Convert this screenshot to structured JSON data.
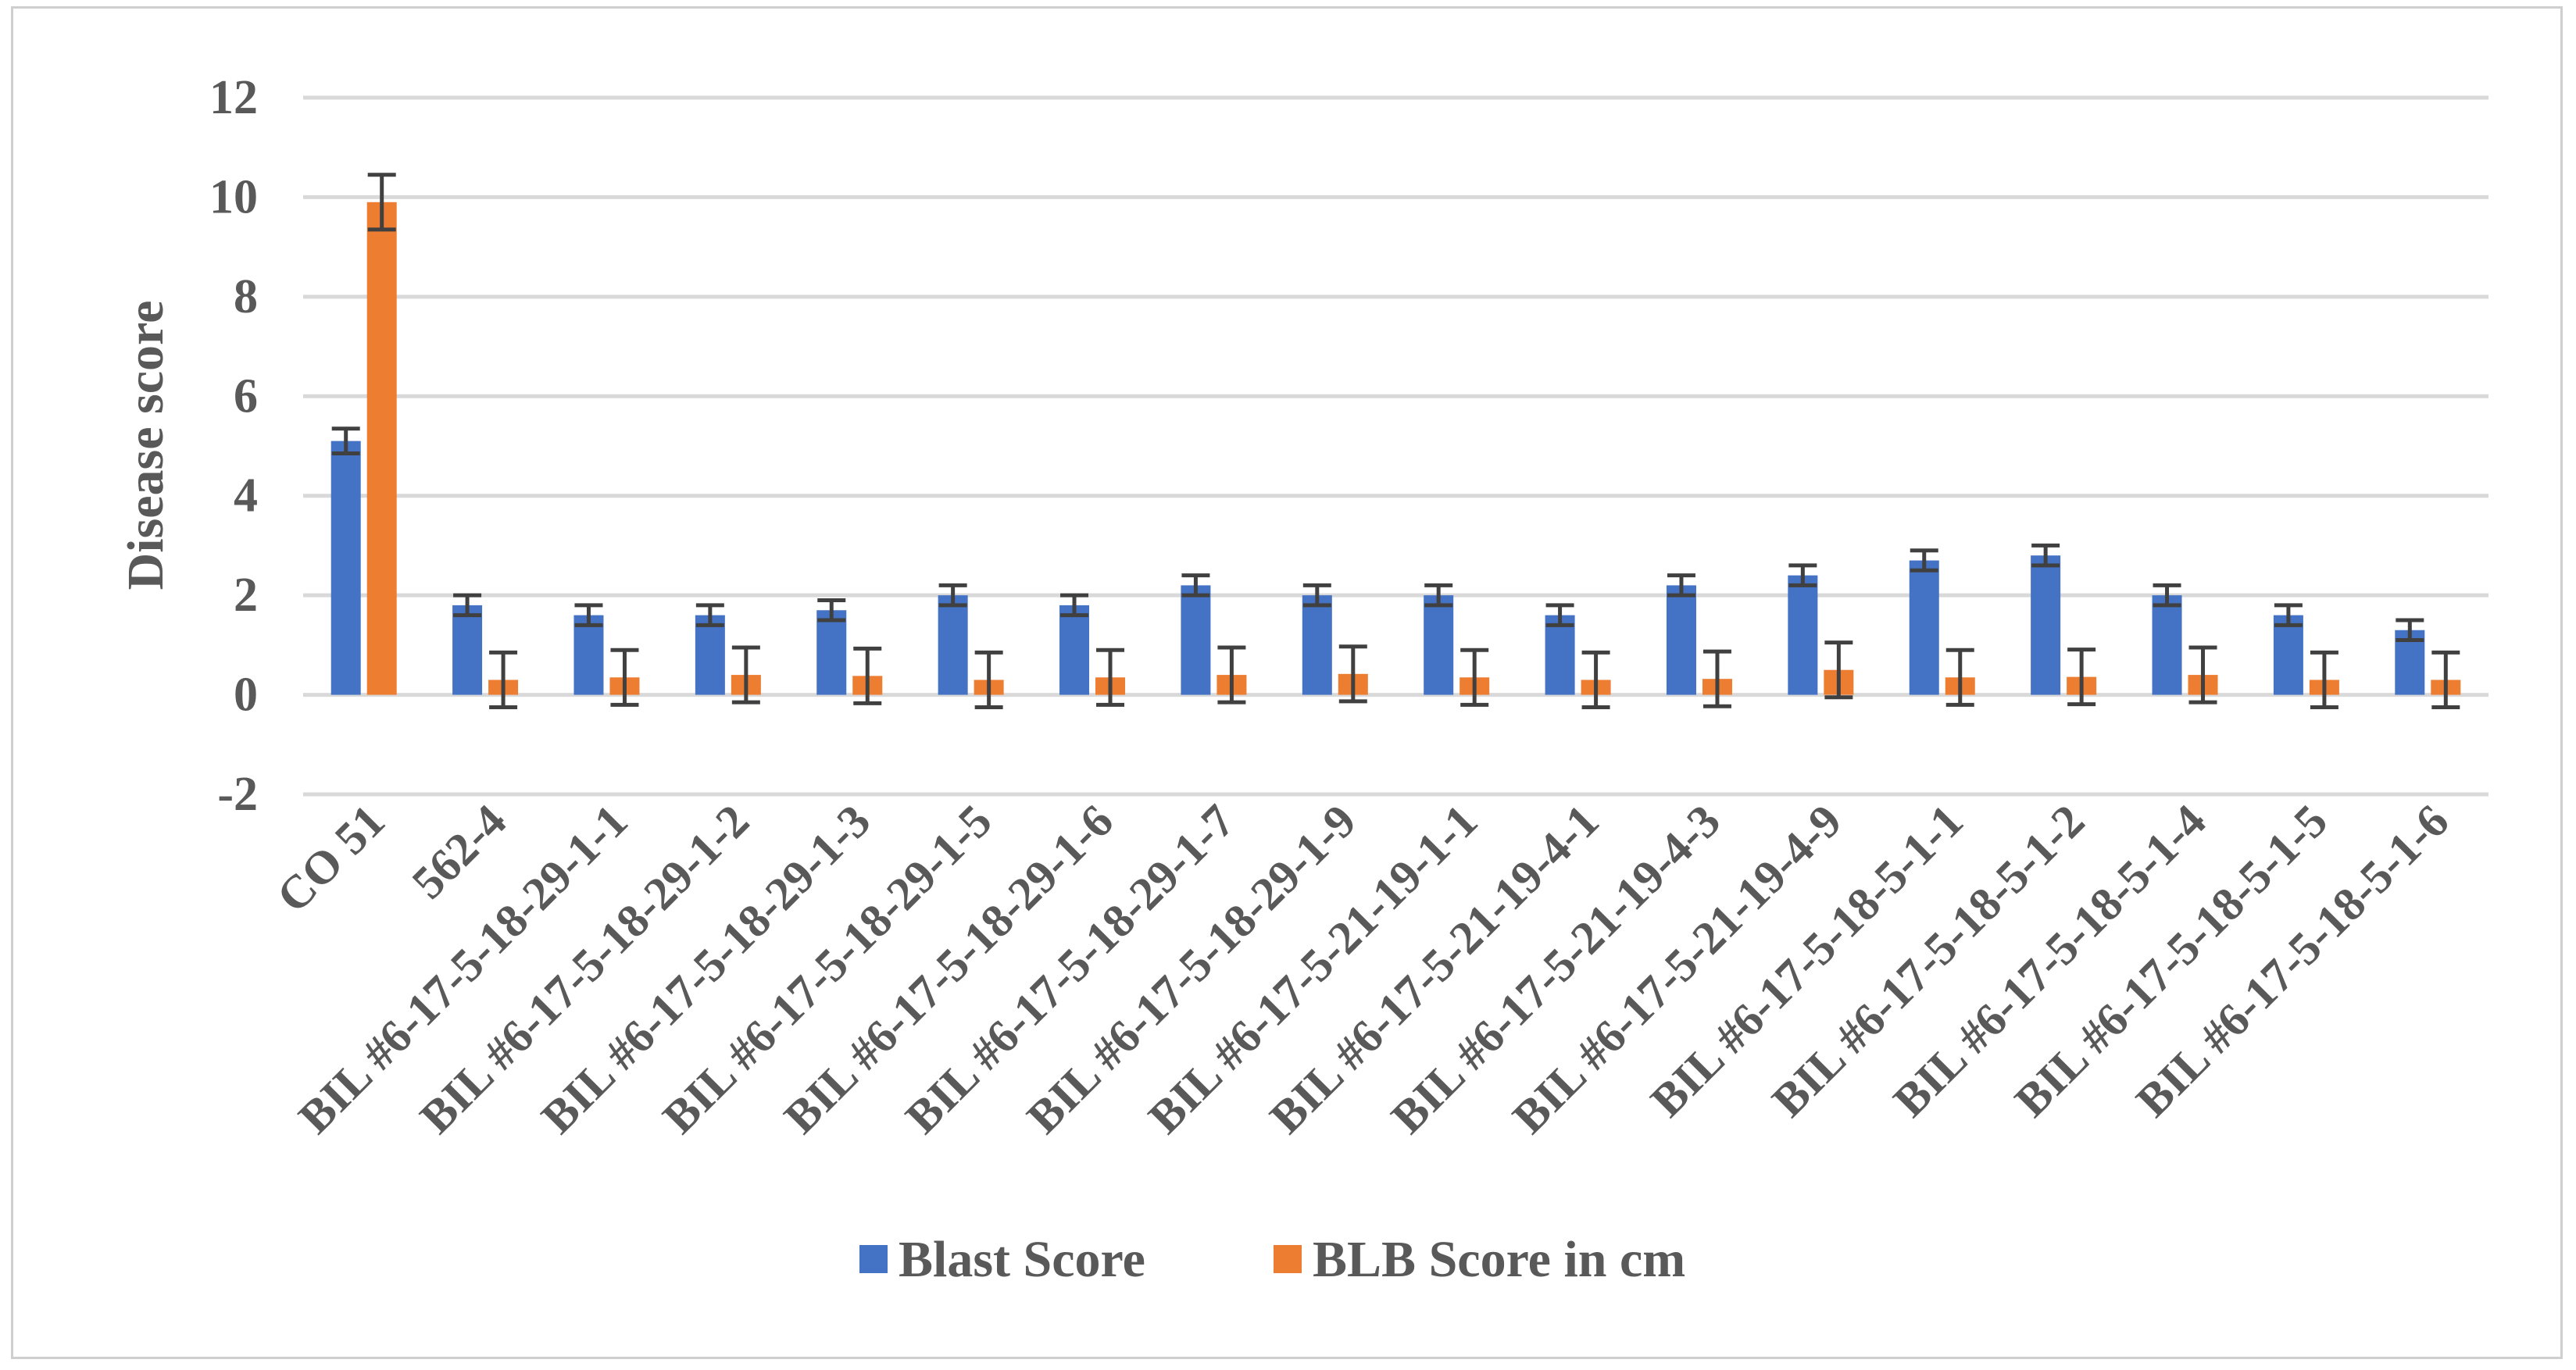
{
  "chart_data": {
    "type": "bar",
    "title": "",
    "xlabel": "",
    "ylabel": "Disease score",
    "ylim": [
      -2,
      12
    ],
    "yticks": [
      -2,
      0,
      2,
      4,
      6,
      8,
      10,
      12
    ],
    "grid": true,
    "legend_position": "bottom",
    "categories": [
      "CO 51",
      "562-4",
      "BIL #6-17-5-18-29-1-1",
      "BIL #6-17-5-18-29-1-2",
      "BIL #6-17-5-18-29-1-3",
      "BIL #6-17-5-18-29-1-5",
      "BIL #6-17-5-18-29-1-6",
      "BIL #6-17-5-18-29-1-7",
      "BIL #6-17-5-18-29-1-9",
      "BIL #6-17-5-21-19-1-1",
      "BIL #6-17-5-21-19-4-1",
      "BIL #6-17-5-21-19-4-3",
      "BIL #6-17-5-21-19-4-9",
      "BIL #6-17-5-18-5-1-1",
      "BIL #6-17-5-18-5-1-2",
      "BIL #6-17-5-18-5-1-4",
      "BIL #6-17-5-18-5-1-5",
      "BIL #6-17-5-18-5-1-6"
    ],
    "series": [
      {
        "name": "Blast Score",
        "color": "#4472c4",
        "values": [
          5.1,
          1.8,
          1.6,
          1.6,
          1.7,
          2.0,
          1.8,
          2.2,
          2.0,
          2.0,
          1.6,
          2.2,
          2.4,
          2.7,
          2.8,
          2.0,
          1.6,
          1.3
        ],
        "errors": [
          0.25,
          0.2,
          0.2,
          0.2,
          0.2,
          0.2,
          0.2,
          0.2,
          0.2,
          0.2,
          0.2,
          0.2,
          0.2,
          0.2,
          0.2,
          0.2,
          0.2,
          0.2
        ]
      },
      {
        "name": "BLB Score in cm",
        "color": "#ed7d31",
        "values": [
          9.9,
          0.3,
          0.35,
          0.4,
          0.38,
          0.3,
          0.35,
          0.4,
          0.42,
          0.35,
          0.3,
          0.32,
          0.5,
          0.35,
          0.36,
          0.4,
          0.3,
          0.3
        ],
        "errors": [
          0.55,
          0.55,
          0.55,
          0.55,
          0.55,
          0.55,
          0.55,
          0.55,
          0.55,
          0.55,
          0.55,
          0.55,
          0.55,
          0.55,
          0.55,
          0.55,
          0.55,
          0.55
        ]
      }
    ]
  }
}
